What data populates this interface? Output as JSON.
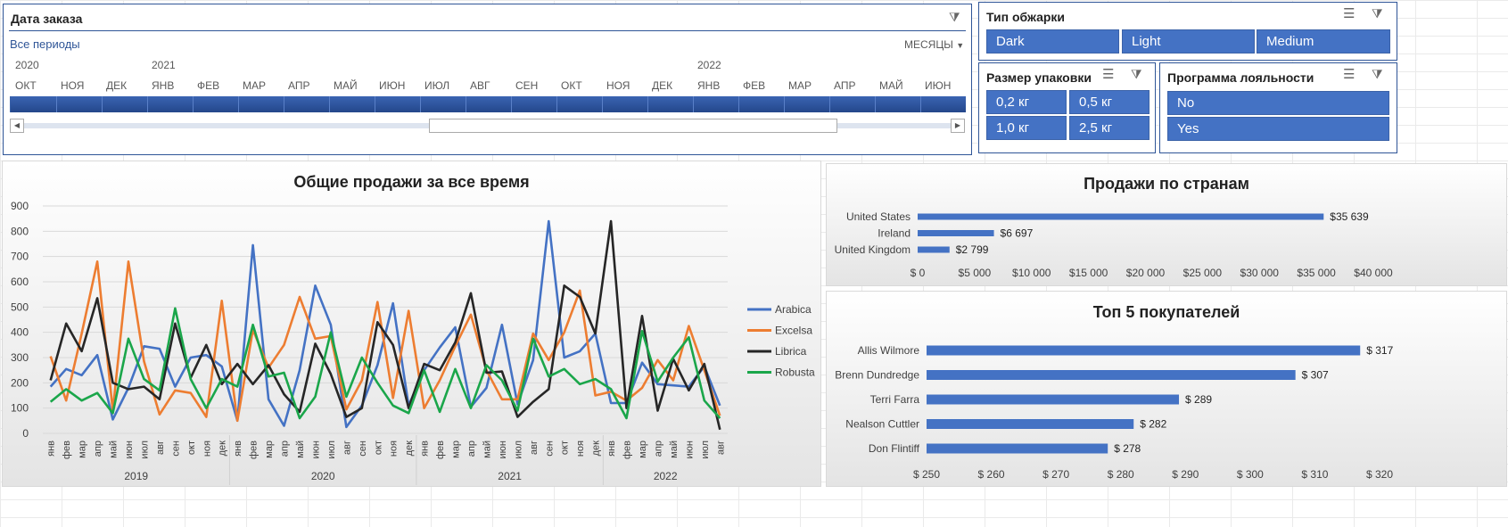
{
  "date_slicer": {
    "title": "Дата заказа",
    "all_periods": "Все периоды",
    "level": "МЕСЯЦЫ",
    "years": [
      {
        "label": "2020",
        "index": 0
      },
      {
        "label": "2021",
        "index": 3
      },
      {
        "label": "2022",
        "index": 15
      }
    ],
    "months": [
      "ОКТ",
      "НОЯ",
      "ДЕК",
      "ЯНВ",
      "ФЕВ",
      "МАР",
      "АПР",
      "МАЙ",
      "ИЮН",
      "ИЮЛ",
      "АВГ",
      "СЕН",
      "ОКТ",
      "НОЯ",
      "ДЕК",
      "ЯНВ",
      "ФЕВ",
      "МАР",
      "АПР",
      "МАЙ",
      "ИЮН"
    ]
  },
  "roast_slicer": {
    "title": "Тип обжарки",
    "options": [
      "Dark",
      "Light",
      "Medium"
    ]
  },
  "size_slicer": {
    "title": "Размер упаковки",
    "options": [
      "0,2 кг",
      "0,5 кг",
      "1,0 кг",
      "2,5 кг"
    ]
  },
  "loyalty_slicer": {
    "title": "Программа лояльности",
    "options": [
      "No",
      "Yes"
    ]
  },
  "colors": {
    "Arabica": "#4472c4",
    "Excelsa": "#ed7d31",
    "Librica": "#262626",
    "Robusta": "#1aa64a",
    "bar": "#4472c4",
    "accent": "#2f5597"
  },
  "chart_data": [
    {
      "type": "line",
      "title": "Общие продажи за все время",
      "ylim": [
        0,
        900
      ],
      "yticks": [
        0,
        100,
        200,
        300,
        400,
        500,
        600,
        700,
        800,
        900
      ],
      "month_labels": [
        "янв",
        "фев",
        "мар",
        "апр",
        "май",
        "июн",
        "июл",
        "авг",
        "сен",
        "окт",
        "ноя",
        "дек",
        "янв",
        "фев",
        "мар",
        "апр",
        "май",
        "июн",
        "июл",
        "авг",
        "сен",
        "окт",
        "ноя",
        "дек",
        "янв",
        "фев",
        "мар",
        "апр",
        "май",
        "июн",
        "июл",
        "авг",
        "сен",
        "окт",
        "ноя",
        "дек",
        "янв",
        "фев",
        "мар",
        "апр",
        "май",
        "июн",
        "июл",
        "авг"
      ],
      "year_labels": [
        {
          "label": "2019",
          "start": 0,
          "end": 11
        },
        {
          "label": "2020",
          "start": 12,
          "end": 23
        },
        {
          "label": "2021",
          "start": 24,
          "end": 35
        },
        {
          "label": "2022",
          "start": 36,
          "end": 43
        }
      ],
      "series": [
        {
          "name": "Arabica",
          "values": [
            185,
            255,
            230,
            310,
            55,
            180,
            345,
            335,
            185,
            300,
            310,
            265,
            50,
            745,
            135,
            30,
            250,
            585,
            430,
            25,
            110,
            270,
            515,
            110,
            250,
            340,
            420,
            105,
            180,
            430,
            115,
            290,
            840,
            300,
            325,
            395,
            120,
            120,
            280,
            195,
            190,
            185,
            265,
            110
          ]
        },
        {
          "name": "Excelsa",
          "values": [
            305,
            130,
            395,
            680,
            90,
            680,
            285,
            75,
            170,
            160,
            65,
            525,
            50,
            410,
            260,
            350,
            540,
            375,
            385,
            95,
            210,
            520,
            140,
            485,
            100,
            210,
            345,
            470,
            250,
            135,
            135,
            395,
            290,
            400,
            565,
            150,
            165,
            130,
            180,
            290,
            210,
            425,
            250,
            70
          ]
        },
        {
          "name": "Librica",
          "values": [
            210,
            435,
            325,
            535,
            200,
            175,
            185,
            135,
            435,
            220,
            350,
            195,
            275,
            195,
            270,
            155,
            85,
            355,
            235,
            65,
            100,
            440,
            350,
            100,
            275,
            250,
            360,
            555,
            240,
            245,
            65,
            125,
            175,
            585,
            540,
            395,
            840,
            100,
            465,
            90,
            295,
            170,
            275,
            15
          ]
        },
        {
          "name": "Robusta",
          "values": [
            125,
            175,
            130,
            160,
            80,
            375,
            215,
            170,
            495,
            215,
            100,
            215,
            185,
            430,
            225,
            240,
            60,
            145,
            400,
            145,
            300,
            200,
            110,
            80,
            250,
            85,
            255,
            100,
            270,
            210,
            90,
            375,
            225,
            255,
            195,
            215,
            175,
            60,
            405,
            205,
            300,
            380,
            130,
            60
          ]
        }
      ]
    },
    {
      "type": "bar",
      "title": "Продажи по странам",
      "categories": [
        "United States",
        "Ireland",
        "United Kingdom"
      ],
      "values": [
        35639,
        6697,
        2799
      ],
      "value_labels": [
        "$35 639",
        "$6 697",
        "$2 799"
      ],
      "xlim": [
        0,
        40000
      ],
      "xtick_labels": [
        "$ 0",
        "$5 000",
        "$10 000",
        "$15 000",
        "$20 000",
        "$25 000",
        "$30 000",
        "$35 000",
        "$40 000"
      ]
    },
    {
      "type": "bar",
      "title": "Топ 5 покупателей",
      "categories": [
        "Allis Wilmore",
        "Brenn Dundredge",
        "Terri Farra",
        "Nealson Cuttler",
        "Don Flintiff"
      ],
      "values": [
        317,
        307,
        289,
        282,
        278
      ],
      "value_labels": [
        "$ 317",
        "$ 307",
        "$ 289",
        "$ 282",
        "$ 278"
      ],
      "xlim": [
        250,
        320
      ],
      "xtick_labels": [
        "$ 250",
        "$ 260",
        "$ 270",
        "$ 280",
        "$ 290",
        "$ 300",
        "$ 310",
        "$ 320"
      ]
    }
  ]
}
